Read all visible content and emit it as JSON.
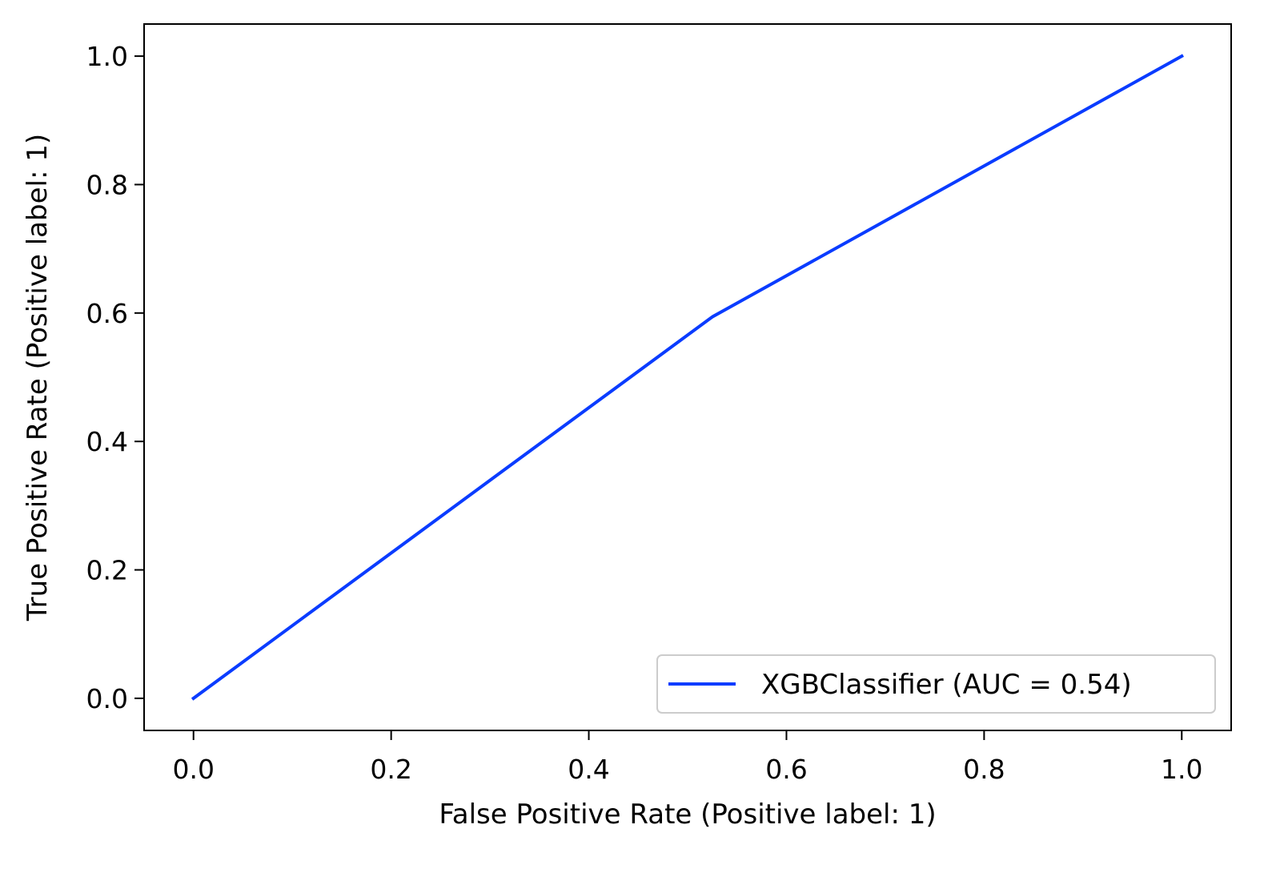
{
  "chart_data": {
    "type": "line",
    "title": "",
    "xlabel": "False Positive Rate (Positive label: 1)",
    "ylabel": "True Positive Rate (Positive label: 1)",
    "xlim": [
      -0.05,
      1.05
    ],
    "ylim": [
      -0.05,
      1.05
    ],
    "x_ticks": [
      0.0,
      0.2,
      0.4,
      0.6,
      0.8,
      1.0
    ],
    "x_tick_labels": [
      "0.0",
      "0.2",
      "0.4",
      "0.6",
      "0.8",
      "1.0"
    ],
    "y_ticks": [
      0.0,
      0.2,
      0.4,
      0.6,
      0.8,
      1.0
    ],
    "y_tick_labels": [
      "0.0",
      "0.2",
      "0.4",
      "0.6",
      "0.8",
      "1.0"
    ],
    "grid": false,
    "legend_position": "bottom-right",
    "series": [
      {
        "name": "XGBClassifier (AUC = 0.54)",
        "color": "#0a3cff",
        "x": [
          0.0,
          0.525,
          1.0
        ],
        "y": [
          0.0,
          0.594,
          1.0
        ]
      }
    ]
  }
}
